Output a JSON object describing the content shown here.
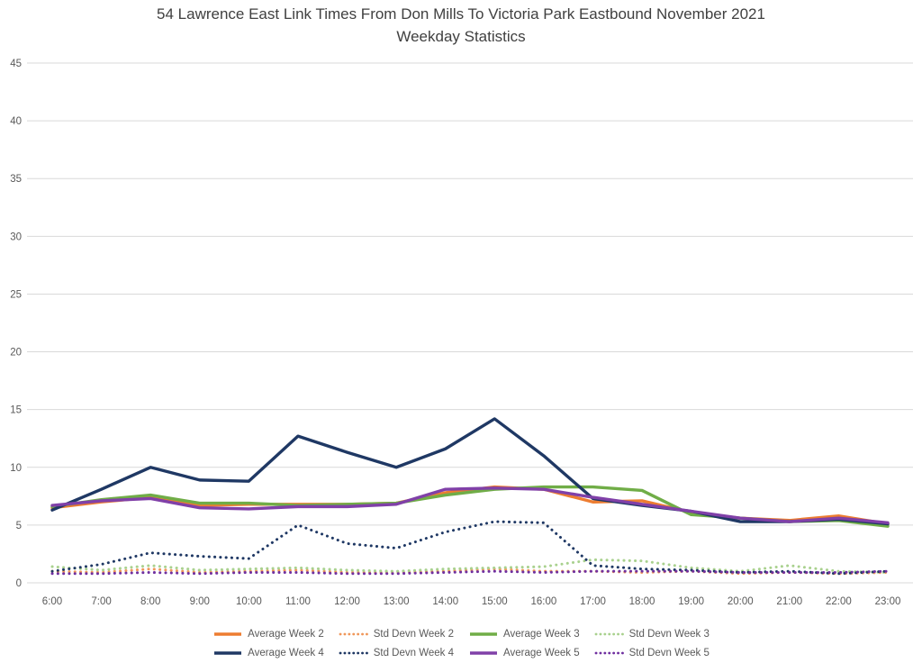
{
  "colors": {
    "background": "#ffffff",
    "grid": "#d9d9d9",
    "title_text": "#404040",
    "axis_text": "#595959",
    "legend_text": "#595959"
  },
  "chart_data": {
    "type": "line",
    "title": "54 Lawrence East Link Times From Don Mills To Victoria Park Eastbound November 2021 Weekday Statistics",
    "title_line1": "54 Lawrence East Link Times From Don Mills To Victoria Park Eastbound November 2021",
    "title_line2": "Weekday Statistics",
    "xlabel": "",
    "ylabel": "",
    "ylim": [
      0,
      45
    ],
    "ytick_interval": 5,
    "grid": "horizontal",
    "legend_position": "bottom-two-rows",
    "x": [
      "6:00",
      "7:00",
      "8:00",
      "9:00",
      "10:00",
      "11:00",
      "12:00",
      "13:00",
      "14:00",
      "15:00",
      "16:00",
      "17:00",
      "18:00",
      "19:00",
      "20:00",
      "21:00",
      "22:00",
      "23:00"
    ],
    "series": [
      {
        "name": "Average Week 2",
        "style": "solid",
        "color": "#ED7D31",
        "values": [
          6.5,
          7.0,
          7.4,
          6.7,
          6.8,
          6.8,
          6.8,
          6.9,
          7.8,
          8.3,
          8.1,
          7.0,
          7.1,
          6.1,
          5.6,
          5.4,
          5.8,
          5.1
        ]
      },
      {
        "name": "Std Devn Week 2",
        "style": "dotted",
        "color": "#F0975A",
        "values": [
          1.0,
          0.9,
          1.2,
          0.9,
          1.0,
          1.1,
          0.9,
          0.9,
          1.0,
          1.2,
          1.0,
          1.0,
          0.9,
          1.0,
          0.8,
          0.9,
          0.8,
          0.9
        ]
      },
      {
        "name": "Average Week 3",
        "style": "solid",
        "color": "#70AD47",
        "values": [
          6.6,
          7.2,
          7.6,
          6.9,
          6.9,
          6.7,
          6.8,
          6.9,
          7.6,
          8.1,
          8.3,
          8.3,
          8.0,
          5.9,
          5.6,
          5.3,
          5.4,
          4.9
        ]
      },
      {
        "name": "Std Devn Week 3",
        "style": "dotted",
        "color": "#A9D18E",
        "values": [
          1.4,
          1.1,
          1.5,
          1.1,
          1.2,
          1.3,
          1.1,
          1.0,
          1.2,
          1.3,
          1.4,
          2.0,
          1.9,
          1.3,
          1.0,
          1.5,
          1.0,
          0.9
        ]
      },
      {
        "name": "Average Week 4",
        "style": "solid",
        "color": "#1F3864",
        "values": [
          6.3,
          8.1,
          10.0,
          8.9,
          8.8,
          12.7,
          11.3,
          10.0,
          11.6,
          14.2,
          11.0,
          7.3,
          6.7,
          6.2,
          5.3,
          5.3,
          5.5,
          5.1
        ]
      },
      {
        "name": "Std Devn Week 4",
        "style": "dotted",
        "color": "#1F3864",
        "values": [
          1.0,
          1.6,
          2.6,
          2.3,
          2.1,
          5.0,
          3.4,
          3.0,
          4.4,
          5.3,
          5.2,
          1.5,
          1.2,
          1.1,
          0.9,
          1.0,
          0.8,
          1.0
        ]
      },
      {
        "name": "Average Week 5",
        "style": "solid",
        "color": "#8040A8",
        "values": [
          6.7,
          7.1,
          7.3,
          6.5,
          6.4,
          6.6,
          6.6,
          6.8,
          8.1,
          8.2,
          8.1,
          7.4,
          6.8,
          6.2,
          5.6,
          5.3,
          5.6,
          5.2
        ]
      },
      {
        "name": "Std Devn Week 5",
        "style": "dotted",
        "color": "#7030A0",
        "values": [
          0.8,
          0.8,
          0.9,
          0.8,
          0.9,
          0.9,
          0.8,
          0.8,
          0.9,
          1.0,
          0.9,
          1.0,
          1.0,
          1.0,
          0.9,
          0.9,
          0.9,
          1.0
        ]
      }
    ]
  }
}
